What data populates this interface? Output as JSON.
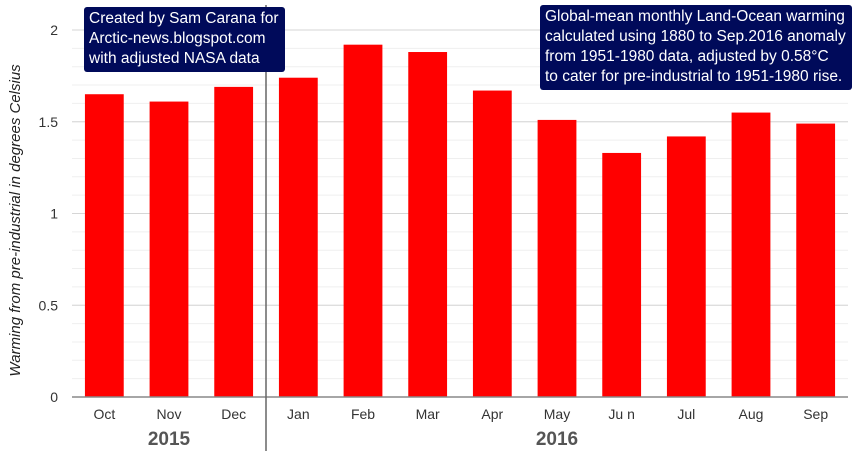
{
  "chart_data": {
    "type": "bar",
    "categories": [
      "Oct",
      "Nov",
      "Dec",
      "Jan",
      "Feb",
      "Mar",
      "Apr",
      "May",
      "Ju n",
      "Jul",
      "Aug",
      "Sep"
    ],
    "values": [
      1.65,
      1.61,
      1.69,
      1.74,
      1.92,
      1.88,
      1.67,
      1.51,
      1.33,
      1.42,
      1.55,
      1.49
    ],
    "ylabel": "Warming from pre-industrial in degrees Celsius",
    "ylim": [
      0,
      2
    ],
    "yticks": [
      {
        "value": 0,
        "label": "0"
      },
      {
        "value": 0.5,
        "label": "0.5"
      },
      {
        "value": 1,
        "label": "1"
      },
      {
        "value": 1.5,
        "label": "1.5"
      },
      {
        "value": 2,
        "label": "2"
      }
    ],
    "year_groups": [
      {
        "label": "2015",
        "start": 0,
        "end": 2
      },
      {
        "label": "2016",
        "start": 3,
        "end": 11
      }
    ],
    "bar_color": "#ff0000",
    "grid": true
  },
  "annotations": {
    "credit": {
      "lines": [
        "Created by Sam Carana for",
        "Arctic-news.blogspot.com",
        "with adjusted NASA data"
      ]
    },
    "description": {
      "lines": [
        "Global-mean monthly Land-Ocean warming",
        "calculated using 1880 to Sep.2016 anomaly",
        "from 1951-1980 data, adjusted by 0.58°C",
        "to cater for pre-industrial to 1951-1980 rise."
      ]
    }
  },
  "colors": {
    "note_background": "#000a5a",
    "note_text": "#ffffff",
    "bars": "#ff0000"
  }
}
